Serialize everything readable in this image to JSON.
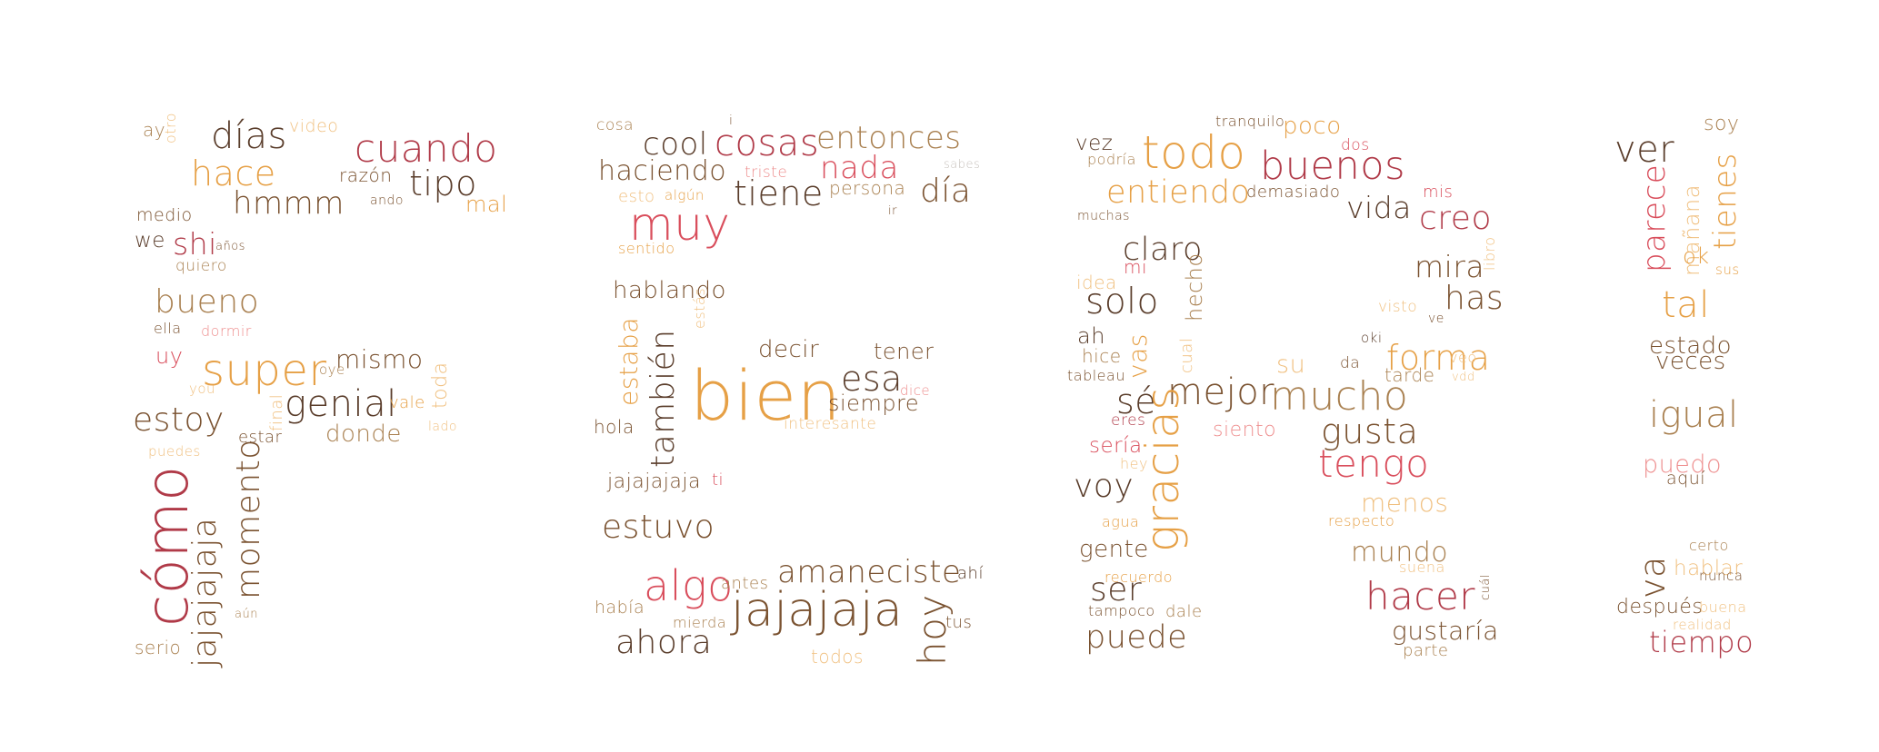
{
  "palette": {
    "dark_brown": "#5a3d2b",
    "brown": "#7a5230",
    "tan": "#a98050",
    "orange": "#e6a046",
    "light_orange": "#f0c080",
    "crimson": "#b03a48",
    "red": "#d94e5c",
    "pink": "#ee8f8f",
    "grey": "#c8c2bd"
  },
  "words": [
    {
      "text": "ay",
      "color": "#a98050"
    },
    {
      "text": "otro",
      "color": "#f0c080"
    },
    {
      "text": "días",
      "color": "#5a3d2b"
    },
    {
      "text": "video",
      "color": "#f0c080"
    },
    {
      "text": "cuando",
      "color": "#b03a48"
    },
    {
      "text": "hace",
      "color": "#e6a046"
    },
    {
      "text": "razón",
      "color": "#7a5230"
    },
    {
      "text": "tipo",
      "color": "#5a3d2b"
    },
    {
      "text": "hmmm",
      "color": "#7a5230"
    },
    {
      "text": "ando",
      "color": "#7a5230"
    },
    {
      "text": "mal",
      "color": "#e6a046"
    },
    {
      "text": "medio",
      "color": "#7a5230"
    },
    {
      "text": "we",
      "color": "#5a3d2b"
    },
    {
      "text": "shi",
      "color": "#b03a48"
    },
    {
      "text": "años",
      "color": "#7a5230"
    },
    {
      "text": "quiero",
      "color": "#a98050"
    },
    {
      "text": "bueno",
      "color": "#a98050"
    },
    {
      "text": "ella",
      "color": "#7a5230"
    },
    {
      "text": "dormir",
      "color": "#ee8f8f"
    },
    {
      "text": "uy",
      "color": "#d94e5c"
    },
    {
      "text": "super",
      "color": "#e6a046"
    },
    {
      "text": "mismo",
      "color": "#7a5230"
    },
    {
      "text": "oye",
      "color": "#a98050"
    },
    {
      "text": "toda",
      "color": "#f0c080"
    },
    {
      "text": "you",
      "color": "#f0c080"
    },
    {
      "text": "genial",
      "color": "#5a3d2b"
    },
    {
      "text": "vale",
      "color": "#e6a046"
    },
    {
      "text": "lado",
      "color": "#f0c080"
    },
    {
      "text": "estoy",
      "color": "#7a5230"
    },
    {
      "text": "final",
      "color": "#f0c080"
    },
    {
      "text": "donde",
      "color": "#a98050"
    },
    {
      "text": "estar",
      "color": "#7a5230"
    },
    {
      "text": "puedes",
      "color": "#f0c080"
    },
    {
      "text": "cómo",
      "color": "#b03a48"
    },
    {
      "text": "jajajajaja",
      "color": "#7a5230"
    },
    {
      "text": "momento",
      "color": "#7a5230"
    },
    {
      "text": "aún",
      "color": "#a98050"
    },
    {
      "text": "serio",
      "color": "#a98050"
    },
    {
      "text": "cosa",
      "color": "#a98050"
    },
    {
      "text": "i",
      "color": "#7a5230"
    },
    {
      "text": "cool",
      "color": "#5a3d2b"
    },
    {
      "text": "cosas",
      "color": "#b03a48"
    },
    {
      "text": "entonces",
      "color": "#a98050"
    },
    {
      "text": "sabes",
      "color": "#c8c2bd"
    },
    {
      "text": "haciendo",
      "color": "#7a5230"
    },
    {
      "text": "triste",
      "color": "#ee8f8f"
    },
    {
      "text": "tiene",
      "color": "#5a3d2b"
    },
    {
      "text": "nada",
      "color": "#d94e5c"
    },
    {
      "text": "persona",
      "color": "#a98050"
    },
    {
      "text": "día",
      "color": "#7a5230"
    },
    {
      "text": "esto",
      "color": "#f0c080"
    },
    {
      "text": "algún",
      "color": "#e6a046"
    },
    {
      "text": "ir",
      "color": "#7a5230"
    },
    {
      "text": "muy",
      "color": "#d94e5c"
    },
    {
      "text": "sentido",
      "color": "#e6a046"
    },
    {
      "text": "estás",
      "color": "#f0c080"
    },
    {
      "text": "hablando",
      "color": "#7a5230"
    },
    {
      "text": "estaba",
      "color": "#e6a046"
    },
    {
      "text": "también",
      "color": "#5a3d2b"
    },
    {
      "text": "decir",
      "color": "#7a5230"
    },
    {
      "text": "tener",
      "color": "#7a5230"
    },
    {
      "text": "bien",
      "color": "#e6a046"
    },
    {
      "text": "esa",
      "color": "#5a3d2b"
    },
    {
      "text": "dice",
      "color": "#ee8f8f"
    },
    {
      "text": "siempre",
      "color": "#7a5230"
    },
    {
      "text": "hola",
      "color": "#7a5230"
    },
    {
      "text": "interesante",
      "color": "#f0c080"
    },
    {
      "text": "jajajajaja",
      "color": "#7a5230"
    },
    {
      "text": "ti",
      "color": "#d94e5c"
    },
    {
      "text": "estuvo",
      "color": "#7a5230"
    },
    {
      "text": "amaneciste",
      "color": "#7a5230"
    },
    {
      "text": "ahí",
      "color": "#5a3d2b"
    },
    {
      "text": "algo",
      "color": "#d94e5c"
    },
    {
      "text": "antes",
      "color": "#a98050"
    },
    {
      "text": "había",
      "color": "#a98050"
    },
    {
      "text": "jajajaja",
      "color": "#7a5230"
    },
    {
      "text": "hoy",
      "color": "#7a5230"
    },
    {
      "text": "tus",
      "color": "#7a5230"
    },
    {
      "text": "mierda",
      "color": "#a98050"
    },
    {
      "text": "ahora",
      "color": "#5a3d2b"
    },
    {
      "text": "todos",
      "color": "#f0c080"
    },
    {
      "text": "tranquilo",
      "color": "#7a5230"
    },
    {
      "text": "poco",
      "color": "#e6a046"
    },
    {
      "text": "vez",
      "color": "#5a3d2b"
    },
    {
      "text": "todo",
      "color": "#e6a046"
    },
    {
      "text": "dos",
      "color": "#d94e5c"
    },
    {
      "text": "podría",
      "color": "#a98050"
    },
    {
      "text": "buenos",
      "color": "#b03a48"
    },
    {
      "text": "entiendo",
      "color": "#e6a046"
    },
    {
      "text": "demasiado",
      "color": "#7a5230"
    },
    {
      "text": "vida",
      "color": "#5a3d2b"
    },
    {
      "text": "mis",
      "color": "#d94e5c"
    },
    {
      "text": "muchas",
      "color": "#7a5230"
    },
    {
      "text": "creo",
      "color": "#b03a48"
    },
    {
      "text": "claro",
      "color": "#5a3d2b"
    },
    {
      "text": "mira",
      "color": "#7a5230"
    },
    {
      "text": "libro",
      "color": "#f0c080"
    },
    {
      "text": "mi",
      "color": "#d94e5c"
    },
    {
      "text": "hecho",
      "color": "#a98050"
    },
    {
      "text": "idea",
      "color": "#f0c080"
    },
    {
      "text": "solo",
      "color": "#5a3d2b"
    },
    {
      "text": "visto",
      "color": "#f0c080"
    },
    {
      "text": "ve",
      "color": "#7a5230"
    },
    {
      "text": "has",
      "color": "#7a5230"
    },
    {
      "text": "ah",
      "color": "#5a3d2b"
    },
    {
      "text": "vas",
      "color": "#e6a046"
    },
    {
      "text": "oki",
      "color": "#5a3d2b"
    },
    {
      "text": "forma",
      "color": "#e6a046"
    },
    {
      "text": "hice",
      "color": "#a98050"
    },
    {
      "text": "cual",
      "color": "#f0c080"
    },
    {
      "text": "tableau",
      "color": "#7a5230"
    },
    {
      "text": "su",
      "color": "#f0c080"
    },
    {
      "text": "da",
      "color": "#7a5230"
    },
    {
      "text": "tarde",
      "color": "#a98050"
    },
    {
      "text": "veo",
      "color": "#f0c080"
    },
    {
      "text": "vdd",
      "color": "#f0c080"
    },
    {
      "text": "sé",
      "color": "#5a3d2b"
    },
    {
      "text": "mejor",
      "color": "#7a5230"
    },
    {
      "text": "mucho",
      "color": "#a98050"
    },
    {
      "text": "eres",
      "color": "#b03a48"
    },
    {
      "text": "siento",
      "color": "#ee8f8f"
    },
    {
      "text": "gusta",
      "color": "#7a5230"
    },
    {
      "text": "sería",
      "color": "#d94e5c"
    },
    {
      "text": "gracias",
      "color": "#e6a046"
    },
    {
      "text": "hey",
      "color": "#f0c080"
    },
    {
      "text": "tengo",
      "color": "#d94e5c"
    },
    {
      "text": "voy",
      "color": "#5a3d2b"
    },
    {
      "text": "menos",
      "color": "#f0c080"
    },
    {
      "text": "agua",
      "color": "#e6a046"
    },
    {
      "text": "respecto",
      "color": "#e6a046"
    },
    {
      "text": "gente",
      "color": "#7a5230"
    },
    {
      "text": "mundo",
      "color": "#a98050"
    },
    {
      "text": "suena",
      "color": "#f0c080"
    },
    {
      "text": "recuerdo",
      "color": "#e6a046"
    },
    {
      "text": "ser",
      "color": "#5a3d2b"
    },
    {
      "text": "hacer",
      "color": "#b03a48"
    },
    {
      "text": "cuál",
      "color": "#7a5230"
    },
    {
      "text": "tampoco",
      "color": "#7a5230"
    },
    {
      "text": "dale",
      "color": "#a98050"
    },
    {
      "text": "puede",
      "color": "#7a5230"
    },
    {
      "text": "gustaría",
      "color": "#7a5230"
    },
    {
      "text": "parte",
      "color": "#a98050"
    },
    {
      "text": "soy",
      "color": "#a98050"
    },
    {
      "text": "ver",
      "color": "#5a3d2b"
    },
    {
      "text": "parece",
      "color": "#d94e5c"
    },
    {
      "text": "mañana",
      "color": "#f0c080"
    },
    {
      "text": "tienes",
      "color": "#e6a046"
    },
    {
      "text": "ok",
      "color": "#e6a046"
    },
    {
      "text": "sus",
      "color": "#e6a046"
    },
    {
      "text": "tal",
      "color": "#e6a046"
    },
    {
      "text": "estado",
      "color": "#7a5230"
    },
    {
      "text": "veces",
      "color": "#7a5230"
    },
    {
      "text": "igual",
      "color": "#a98050"
    },
    {
      "text": "puedo",
      "color": "#ee8f8f"
    },
    {
      "text": "aquí",
      "color": "#7a5230"
    },
    {
      "text": "certo",
      "color": "#a98050"
    },
    {
      "text": "va",
      "color": "#7a5230"
    },
    {
      "text": "hablar",
      "color": "#f0c080"
    },
    {
      "text": "nunca",
      "color": "#7a5230"
    },
    {
      "text": "después",
      "color": "#7a5230"
    },
    {
      "text": "buena",
      "color": "#f0c080"
    },
    {
      "text": "realidad",
      "color": "#f0c080"
    },
    {
      "text": "tiempo",
      "color": "#b03a48"
    }
  ]
}
